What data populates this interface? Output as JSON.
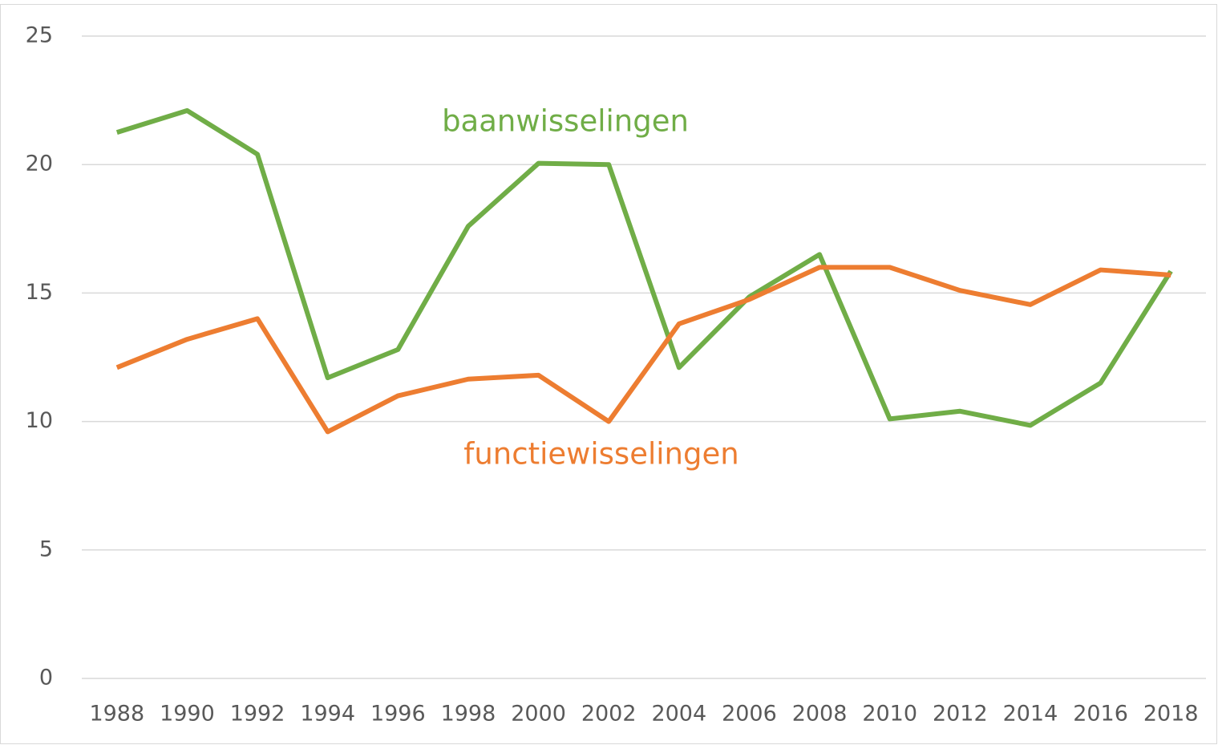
{
  "chart_data": {
    "type": "line",
    "categories": [
      "1988",
      "1990",
      "1992",
      "1994",
      "1996",
      "1998",
      "2000",
      "2002",
      "2004",
      "2006",
      "2008",
      "2010",
      "2012",
      "2014",
      "2016",
      "2018"
    ],
    "series": [
      {
        "name": "baanwisselingen",
        "color": "#70ad47",
        "values": [
          21.25,
          22.1,
          20.4,
          11.7,
          12.8,
          17.6,
          20.05,
          20.0,
          12.1,
          14.85,
          16.5,
          10.1,
          10.4,
          9.85,
          11.5,
          15.85
        ]
      },
      {
        "name": "functiewisselingen",
        "color": "#ed7d31",
        "values": [
          12.1,
          13.2,
          14.0,
          9.6,
          11.0,
          11.65,
          11.8,
          10.0,
          13.8,
          14.75,
          16.0,
          16.0,
          15.1,
          14.55,
          15.9,
          15.7
        ]
      }
    ],
    "ylim": [
      0,
      25
    ],
    "yticks": [
      0,
      5,
      10,
      15,
      20,
      25
    ],
    "grid": true
  }
}
